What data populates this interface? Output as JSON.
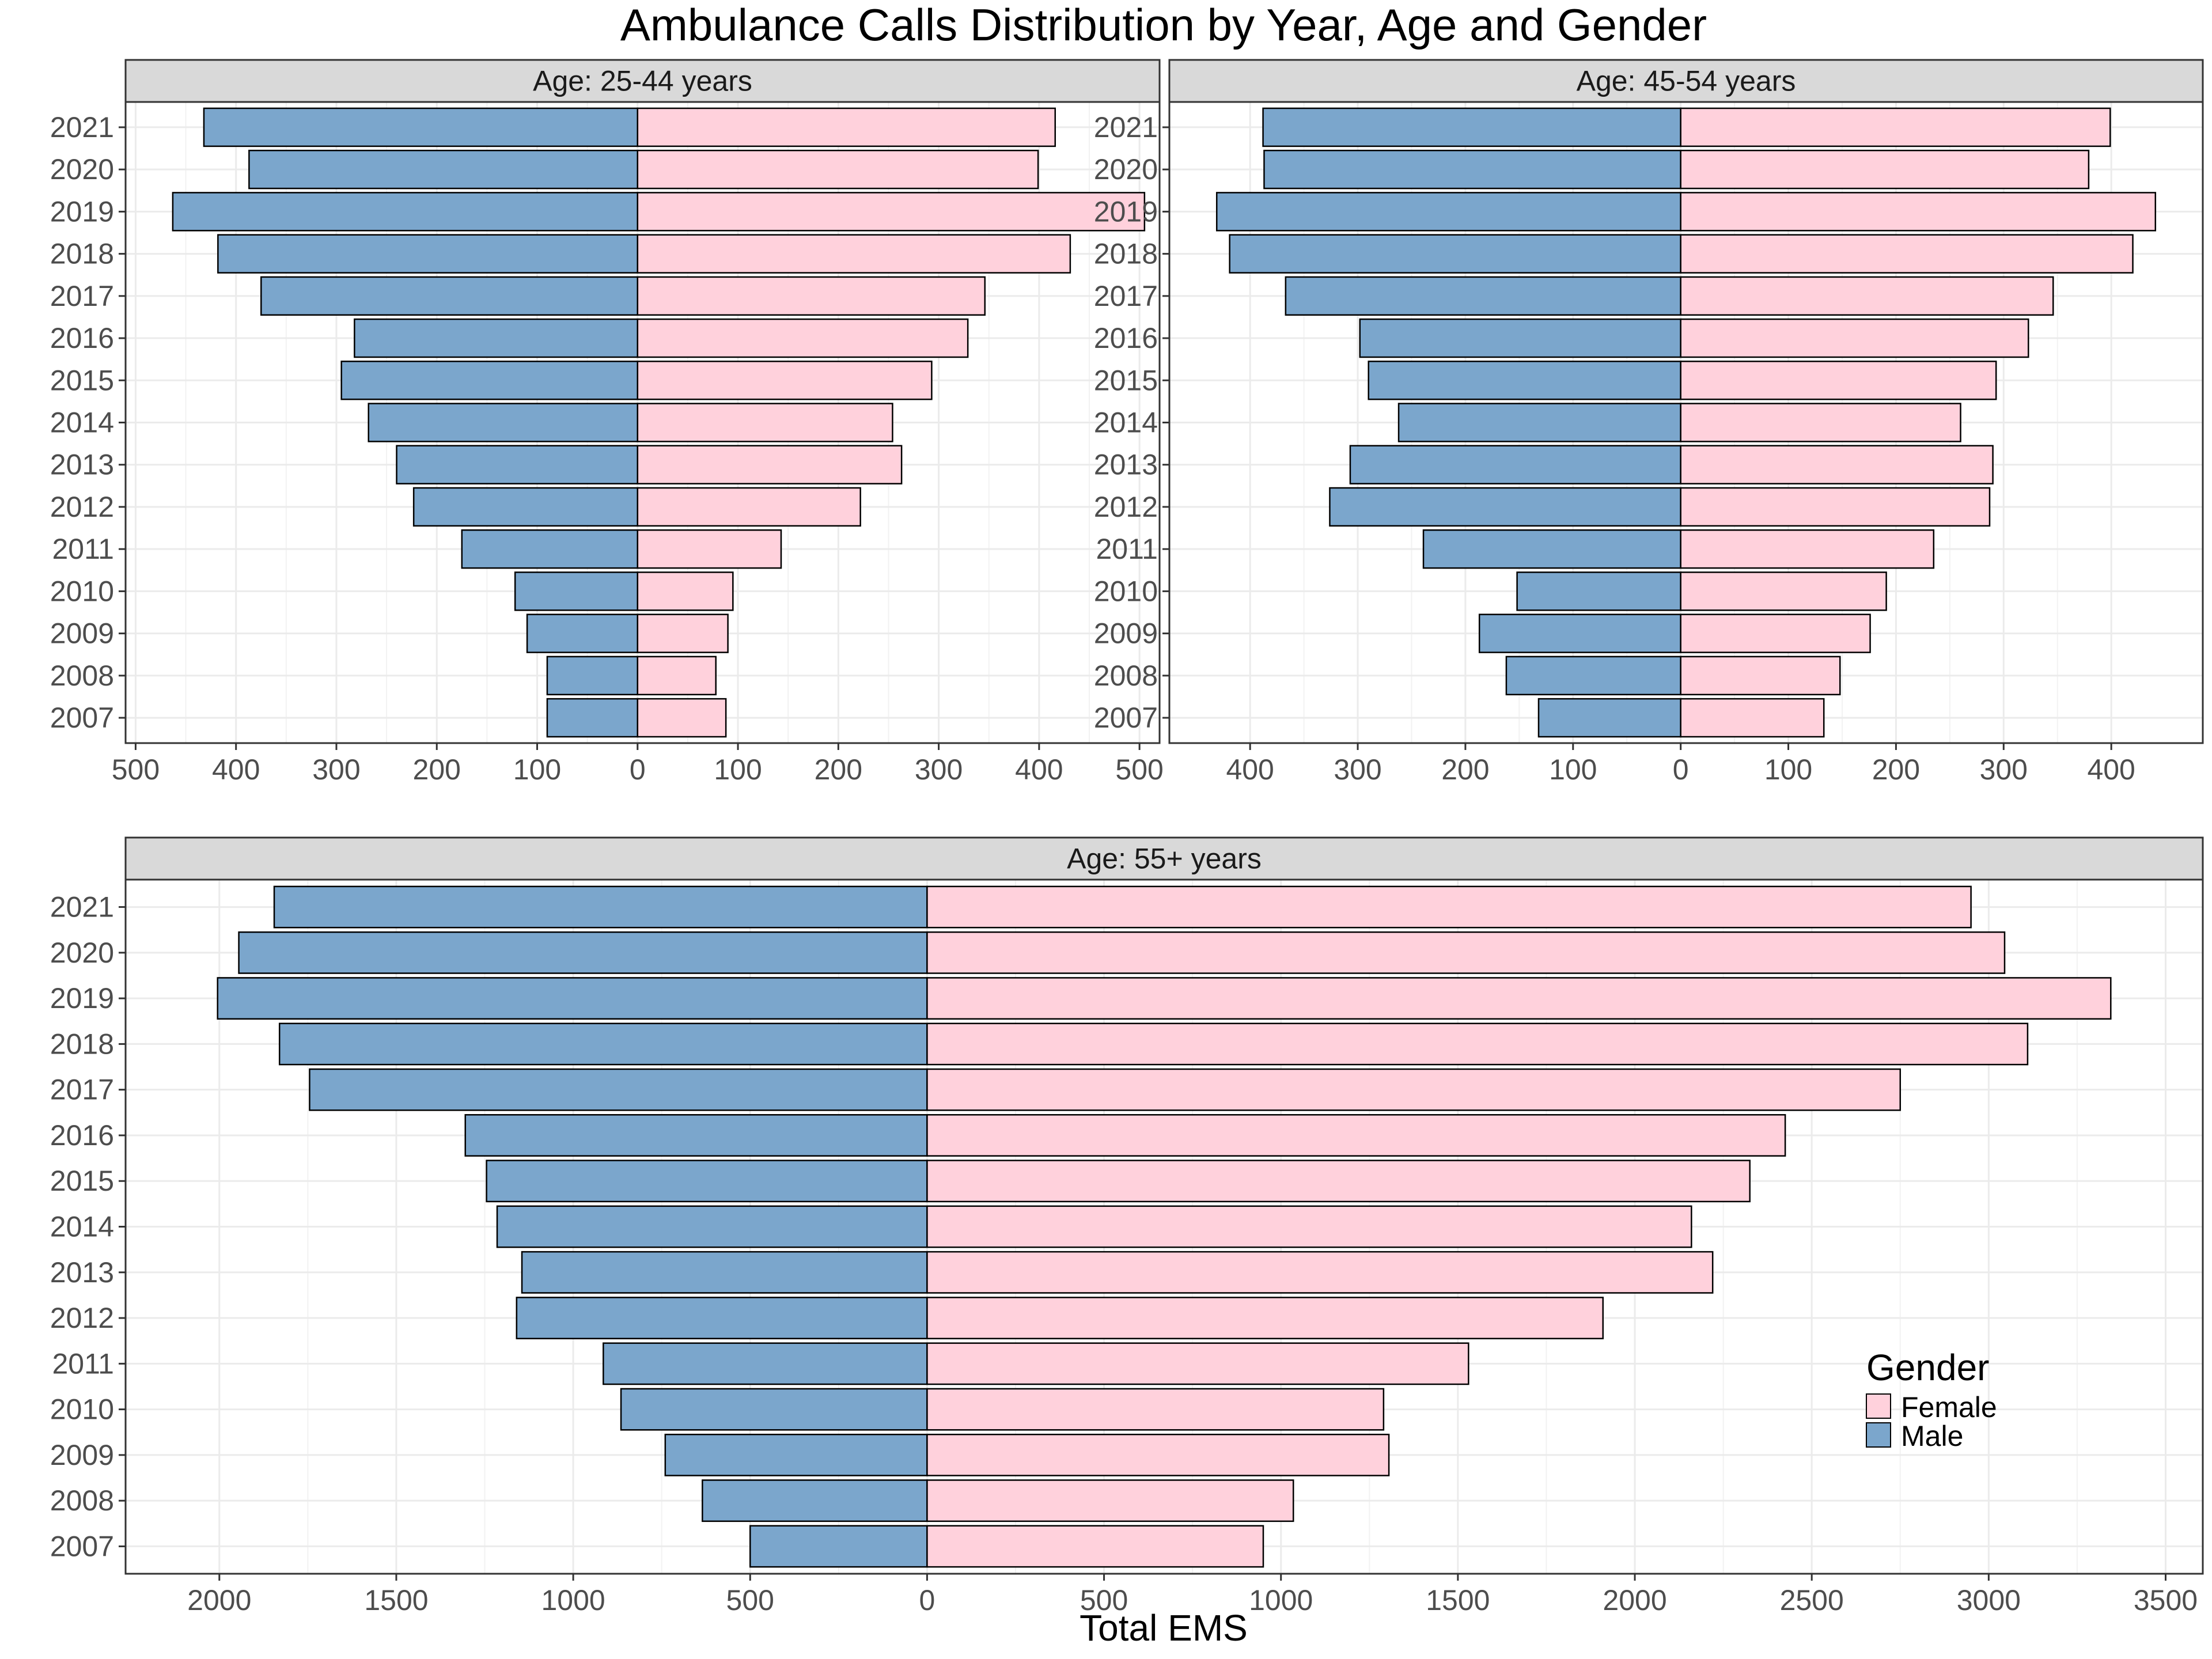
{
  "chart_data": {
    "type": "bar",
    "title": "Ambulance Calls Distribution by Year, Age and Gender",
    "xlabel": "Total EMS",
    "ylabel": "",
    "categories": [
      "2007",
      "2008",
      "2009",
      "2010",
      "2011",
      "2012",
      "2013",
      "2014",
      "2015",
      "2016",
      "2017",
      "2018",
      "2019",
      "2020",
      "2021"
    ],
    "legend": {
      "title": "Gender",
      "placement": "bottom-right inside",
      "entries": [
        {
          "name": "Female",
          "color": "#FFD1DC"
        },
        {
          "name": "Male",
          "color": "#7BA6CC"
        }
      ]
    },
    "panels": [
      {
        "label": "Age: 25-44 years",
        "xlim": [
          -510,
          520
        ],
        "ticks": [
          -500,
          -400,
          -300,
          -200,
          -100,
          0,
          100,
          200,
          300,
          400,
          500
        ],
        "tick_labels": [
          "500",
          "400",
          "300",
          "200",
          "100",
          "0",
          "100",
          "200",
          "300",
          "400",
          "500"
        ],
        "series": [
          {
            "name": "Male",
            "values": [
              90,
              90,
              110,
              122,
              175,
              223,
              240,
              268,
              295,
              282,
              375,
              418,
              463,
              387,
              432
            ]
          },
          {
            "name": "Female",
            "values": [
              88,
              78,
              90,
              95,
              143,
              222,
              263,
              254,
              293,
              329,
              346,
              431,
              505,
              399,
              416
            ]
          }
        ]
      },
      {
        "label": "Age: 45-54 years",
        "xlim": [
          -475,
          485
        ],
        "ticks": [
          -400,
          -300,
          -200,
          -100,
          0,
          100,
          200,
          300,
          400
        ],
        "tick_labels": [
          "400",
          "300",
          "200",
          "100",
          "0",
          "100",
          "200",
          "300",
          "400"
        ],
        "series": [
          {
            "name": "Male",
            "values": [
              132,
              162,
              187,
              152,
              239,
              326,
              307,
              262,
              290,
              298,
              367,
              419,
              431,
              387,
              388
            ]
          },
          {
            "name": "Female",
            "values": [
              133,
              148,
              176,
              191,
              235,
              287,
              290,
              260,
              293,
              323,
              346,
              420,
              441,
              379,
              399
            ]
          }
        ]
      },
      {
        "label": "Age: 55+ years",
        "xlim": [
          -2265,
          3605
        ],
        "ticks": [
          -2000,
          -1500,
          -1000,
          -500,
          0,
          500,
          1000,
          1500,
          2000,
          2500,
          3000,
          3500
        ],
        "tick_labels": [
          "2000",
          "1500",
          "1000",
          "500",
          "0",
          "500",
          "1000",
          "1500",
          "2000",
          "2500",
          "3000",
          "3500"
        ],
        "series": [
          {
            "name": "Male",
            "values": [
              500,
              635,
              740,
              865,
              915,
              1160,
              1145,
              1215,
              1245,
              1305,
              1745,
              1830,
              2005,
              1945,
              1845
            ]
          },
          {
            "name": "Female",
            "values": [
              950,
              1035,
              1305,
              1290,
              1530,
              1910,
              2220,
              2160,
              2325,
              2425,
              2750,
              3110,
              3345,
              3045,
              2950
            ]
          }
        ]
      }
    ]
  }
}
